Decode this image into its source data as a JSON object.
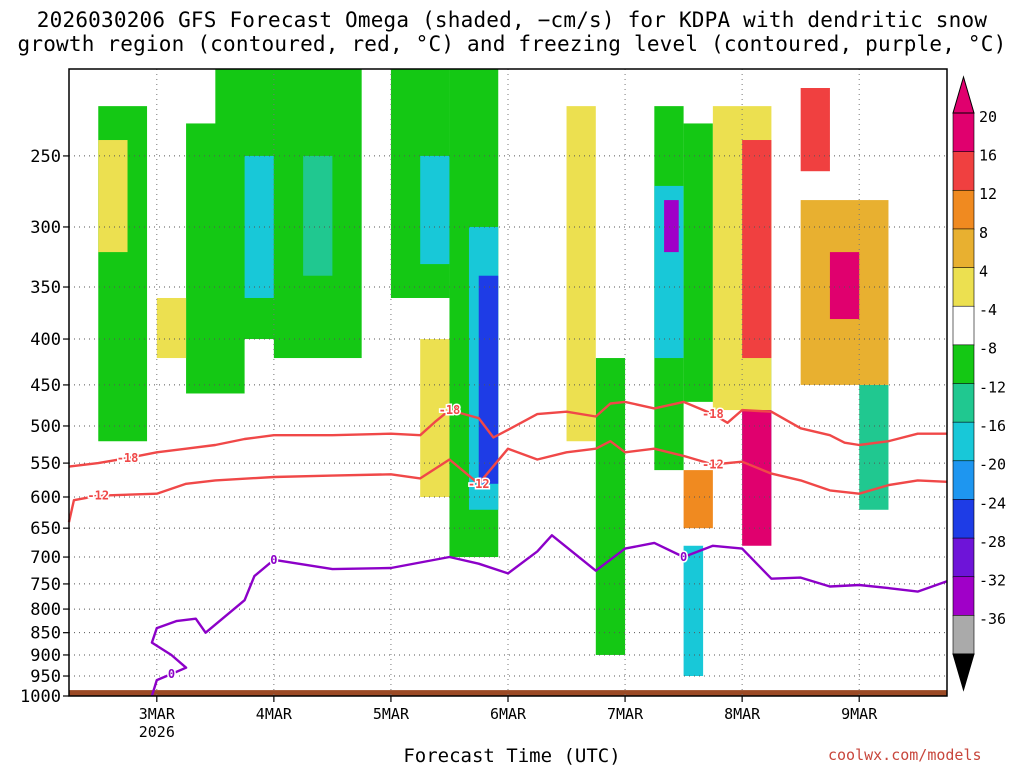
{
  "title": {
    "line1": "2026030206 GFS Forecast Omega (shaded, −cm/s) for KDPA with dendritic snow",
    "line2": "growth region (contoured, red, °C) and freezing level (contoured, purple, °C)"
  },
  "xlabel": "Forecast Time (UTC)",
  "credit": "coolwx.com/models",
  "chart_data": {
    "type": "heatmap",
    "x_ticks": [
      "3MAR",
      "4MAR",
      "5MAR",
      "6MAR",
      "7MAR",
      "8MAR",
      "9MAR"
    ],
    "x_tick_sub": {
      "3MAR": "2026"
    },
    "x_range": [
      "2026-03-02 06:00",
      "2026-03-09 18:00"
    ],
    "ylabel": "",
    "y_ticks": [
      250,
      300,
      350,
      400,
      450,
      500,
      550,
      600,
      650,
      700,
      750,
      800,
      850,
      900,
      950,
      1000
    ],
    "y_range_hpa": [
      1000,
      200
    ],
    "y_scale": "log-pressure",
    "grid": true,
    "colorbar": {
      "ticks": [
        "20",
        "16",
        "12",
        "8",
        "4",
        "-4",
        "-8",
        "-12",
        "-16",
        "-20",
        "-24",
        "-28",
        "-32",
        "-36"
      ],
      "colors": [
        "#e0006e",
        "#f04040",
        "#f08a20",
        "#e8b030",
        "#ece050",
        "#ffffff",
        "#14c814",
        "#20c890",
        "#18c8d8",
        "#1e96f0",
        "#1e3ce6",
        "#6e14d8",
        "#a000c8",
        "#aaaaaa"
      ]
    },
    "shading_colors": {
      "green": "#14c814",
      "teal": "#20c890",
      "cyan": "#18c8d8",
      "blue": "#1e96f0",
      "dblue": "#1e3ce6",
      "purple": "#6e14d8",
      "violet": "#a000c8",
      "yellow": "#ece050",
      "gold": "#e8b030",
      "orange": "#f08a20",
      "red": "#f04040",
      "magenta": "#e0006e",
      "terrain": "#9b4a25"
    },
    "contour_colors": {
      "dgz": "#f04848",
      "freezing": "#8c00c8"
    },
    "contours": [
      {
        "label": "-18",
        "color": "dgz",
        "points": [
          [
            "2026-03-02 06:00",
            555
          ],
          [
            "2026-03-02 12:00",
            550
          ],
          [
            "2026-03-02 18:00",
            543
          ],
          [
            "2026-03-03 00:00",
            535
          ],
          [
            "2026-03-03 06:00",
            530
          ],
          [
            "2026-03-03 12:00",
            525
          ],
          [
            "2026-03-03 18:00",
            517
          ],
          [
            "2026-03-04 00:00",
            512
          ],
          [
            "2026-03-04 12:00",
            512
          ],
          [
            "2026-03-05 00:00",
            510
          ],
          [
            "2026-03-05 06:00",
            512
          ],
          [
            "2026-03-05 09:00",
            495
          ],
          [
            "2026-03-05 12:00",
            480
          ],
          [
            "2026-03-05 18:00",
            490
          ],
          [
            "2026-03-05 21:00",
            515
          ],
          [
            "2026-03-06 00:00",
            505
          ],
          [
            "2026-03-06 06:00",
            485
          ],
          [
            "2026-03-06 12:00",
            482
          ],
          [
            "2026-03-06 18:00",
            488
          ],
          [
            "2026-03-06 21:00",
            472
          ],
          [
            "2026-03-07 00:00",
            470
          ],
          [
            "2026-03-07 06:00",
            478
          ],
          [
            "2026-03-07 12:00",
            470
          ],
          [
            "2026-03-07 18:00",
            485
          ],
          [
            "2026-03-07 21:00",
            496
          ],
          [
            "2026-03-08 00:00",
            480
          ],
          [
            "2026-03-08 06:00",
            482
          ],
          [
            "2026-03-08 12:00",
            503
          ],
          [
            "2026-03-08 18:00",
            512
          ],
          [
            "2026-03-08 21:00",
            522
          ],
          [
            "2026-03-09 00:00",
            525
          ],
          [
            "2026-03-09 06:00",
            520
          ],
          [
            "2026-03-09 12:00",
            510
          ],
          [
            "2026-03-09 18:00",
            510
          ]
        ]
      },
      {
        "label": "-12",
        "color": "dgz",
        "points": [
          [
            "2026-03-02 06:00",
            640
          ],
          [
            "2026-03-02 07:00",
            605
          ],
          [
            "2026-03-02 12:00",
            598
          ],
          [
            "2026-03-03 00:00",
            595
          ],
          [
            "2026-03-03 06:00",
            580
          ],
          [
            "2026-03-03 12:00",
            575
          ],
          [
            "2026-03-04 00:00",
            570
          ],
          [
            "2026-03-04 12:00",
            568
          ],
          [
            "2026-03-05 00:00",
            566
          ],
          [
            "2026-03-05 06:00",
            572
          ],
          [
            "2026-03-05 12:00",
            545
          ],
          [
            "2026-03-05 18:00",
            580
          ],
          [
            "2026-03-06 00:00",
            530
          ],
          [
            "2026-03-06 06:00",
            545
          ],
          [
            "2026-03-06 12:00",
            535
          ],
          [
            "2026-03-06 18:00",
            530
          ],
          [
            "2026-03-06 21:00",
            520
          ],
          [
            "2026-03-07 00:00",
            535
          ],
          [
            "2026-03-07 06:00",
            530
          ],
          [
            "2026-03-07 12:00",
            540
          ],
          [
            "2026-03-07 18:00",
            552
          ],
          [
            "2026-03-08 00:00",
            548
          ],
          [
            "2026-03-08 06:00",
            565
          ],
          [
            "2026-03-08 12:00",
            575
          ],
          [
            "2026-03-08 18:00",
            590
          ],
          [
            "2026-03-09 00:00",
            595
          ],
          [
            "2026-03-09 06:00",
            582
          ],
          [
            "2026-03-09 12:00",
            575
          ],
          [
            "2026-03-09 18:00",
            577
          ]
        ]
      },
      {
        "label": "0",
        "color": "freezing",
        "points": [
          [
            "2026-03-02 23:00",
            1000
          ],
          [
            "2026-03-03 00:00",
            960
          ],
          [
            "2026-03-03 03:00",
            945
          ],
          [
            "2026-03-03 06:00",
            930
          ],
          [
            "2026-03-03 03:00",
            900
          ],
          [
            "2026-03-02 23:00",
            872
          ],
          [
            "2026-03-03 00:00",
            840
          ],
          [
            "2026-03-03 04:00",
            825
          ],
          [
            "2026-03-03 08:00",
            820
          ],
          [
            "2026-03-03 10:00",
            850
          ],
          [
            "2026-03-03 18:00",
            782
          ],
          [
            "2026-03-03 20:00",
            735
          ],
          [
            "2026-03-04 00:00",
            705
          ],
          [
            "2026-03-04 12:00",
            722
          ],
          [
            "2026-03-05 00:00",
            720
          ],
          [
            "2026-03-05 12:00",
            700
          ],
          [
            "2026-03-05 18:00",
            712
          ],
          [
            "2026-03-06 00:00",
            730
          ],
          [
            "2026-03-06 06:00",
            690
          ],
          [
            "2026-03-06 09:00",
            662
          ],
          [
            "2026-03-06 18:00",
            725
          ],
          [
            "2026-03-07 00:00",
            685
          ],
          [
            "2026-03-07 06:00",
            675
          ],
          [
            "2026-03-07 12:00",
            700
          ],
          [
            "2026-03-07 18:00",
            680
          ],
          [
            "2026-03-08 00:00",
            685
          ],
          [
            "2026-03-08 06:00",
            740
          ],
          [
            "2026-03-08 12:00",
            738
          ],
          [
            "2026-03-08 18:00",
            755
          ],
          [
            "2026-03-09 00:00",
            752
          ],
          [
            "2026-03-09 06:00",
            758
          ],
          [
            "2026-03-09 12:00",
            765
          ],
          [
            "2026-03-09 18:00",
            745
          ]
        ]
      }
    ],
    "shaded_cells": [
      {
        "x": [
          "2026-03-02 12:00",
          "2026-03-02 22:00"
        ],
        "p": [
          220,
          520
        ],
        "c": "green"
      },
      {
        "x": [
          "2026-03-03 06:00",
          "2026-03-03 18:00"
        ],
        "p": [
          230,
          460
        ],
        "c": "green"
      },
      {
        "x": [
          "2026-03-03 12:00",
          "2026-03-04 06:00"
        ],
        "p": [
          200,
          400
        ],
        "c": "green"
      },
      {
        "x": [
          "2026-03-03 18:00",
          "2026-03-04 00:00"
        ],
        "p": [
          250,
          360
        ],
        "c": "cyan"
      },
      {
        "x": [
          "2026-03-04 00:00",
          "2026-03-04 18:00"
        ],
        "p": [
          200,
          420
        ],
        "c": "green"
      },
      {
        "x": [
          "2026-03-04 06:00",
          "2026-03-04 12:00"
        ],
        "p": [
          250,
          340
        ],
        "c": "teal"
      },
      {
        "x": [
          "2026-03-05 00:00",
          "2026-03-05 12:00"
        ],
        "p": [
          200,
          360
        ],
        "c": "green"
      },
      {
        "x": [
          "2026-03-05 06:00",
          "2026-03-05 12:00"
        ],
        "p": [
          250,
          330
        ],
        "c": "cyan"
      },
      {
        "x": [
          "2026-03-05 12:00",
          "2026-03-05 22:00"
        ],
        "p": [
          200,
          700
        ],
        "c": "green"
      },
      {
        "x": [
          "2026-03-05 16:00",
          "2026-03-05 22:00"
        ],
        "p": [
          300,
          620
        ],
        "c": "cyan"
      },
      {
        "x": [
          "2026-03-05 18:00",
          "2026-03-05 22:00"
        ],
        "p": [
          340,
          580
        ],
        "c": "dblue"
      },
      {
        "x": [
          "2026-03-06 18:00",
          "2026-03-07 00:00"
        ],
        "p": [
          420,
          900
        ],
        "c": "green"
      },
      {
        "x": [
          "2026-03-07 06:00",
          "2026-03-07 12:00"
        ],
        "p": [
          220,
          560
        ],
        "c": "green"
      },
      {
        "x": [
          "2026-03-07 06:00",
          "2026-03-07 12:00"
        ],
        "p": [
          270,
          420
        ],
        "c": "cyan"
      },
      {
        "x": [
          "2026-03-07 08:00",
          "2026-03-07 11:00"
        ],
        "p": [
          280,
          320
        ],
        "c": "violet"
      },
      {
        "x": [
          "2026-03-07 12:00",
          "2026-03-07 18:00"
        ],
        "p": [
          230,
          470
        ],
        "c": "green"
      },
      {
        "x": [
          "2026-03-07 12:00",
          "2026-03-07 16:00"
        ],
        "p": [
          680,
          950
        ],
        "c": "cyan"
      },
      {
        "x": [
          "2026-03-08 00:00",
          "2026-03-08 06:00"
        ],
        "p": [
          420,
          620
        ],
        "c": "cyan"
      },
      {
        "x": [
          "2026-03-09 00:00",
          "2026-03-09 06:00"
        ],
        "p": [
          450,
          620
        ],
        "c": "teal"
      },
      {
        "x": [
          "2026-03-02 12:00",
          "2026-03-02 18:00"
        ],
        "p": [
          240,
          320
        ],
        "c": "yellow"
      },
      {
        "x": [
          "2026-03-03 00:00",
          "2026-03-03 06:00"
        ],
        "p": [
          360,
          420
        ],
        "c": "yellow"
      },
      {
        "x": [
          "2026-03-05 06:00",
          "2026-03-05 12:00"
        ],
        "p": [
          400,
          600
        ],
        "c": "yellow"
      },
      {
        "x": [
          "2026-03-06 12:00",
          "2026-03-06 18:00"
        ],
        "p": [
          220,
          520
        ],
        "c": "yellow"
      },
      {
        "x": [
          "2026-03-07 18:00",
          "2026-03-08 06:00"
        ],
        "p": [
          220,
          480
        ],
        "c": "yellow"
      },
      {
        "x": [
          "2026-03-07 12:00",
          "2026-03-07 18:00"
        ],
        "p": [
          560,
          650
        ],
        "c": "orange"
      },
      {
        "x": [
          "2026-03-08 00:00",
          "2026-03-08 06:00"
        ],
        "p": [
          240,
          420
        ],
        "c": "red"
      },
      {
        "x": [
          "2026-03-08 00:00",
          "2026-03-08 06:00"
        ],
        "p": [
          480,
          680
        ],
        "c": "magenta"
      },
      {
        "x": [
          "2026-03-08 12:00",
          "2026-03-09 06:00"
        ],
        "p": [
          280,
          450
        ],
        "c": "gold"
      },
      {
        "x": [
          "2026-03-08 18:00",
          "2026-03-09 00:00"
        ],
        "p": [
          320,
          380
        ],
        "c": "magenta"
      },
      {
        "x": [
          "2026-03-08 12:00",
          "2026-03-08 18:00"
        ],
        "p": [
          210,
          260
        ],
        "c": "red"
      }
    ]
  }
}
